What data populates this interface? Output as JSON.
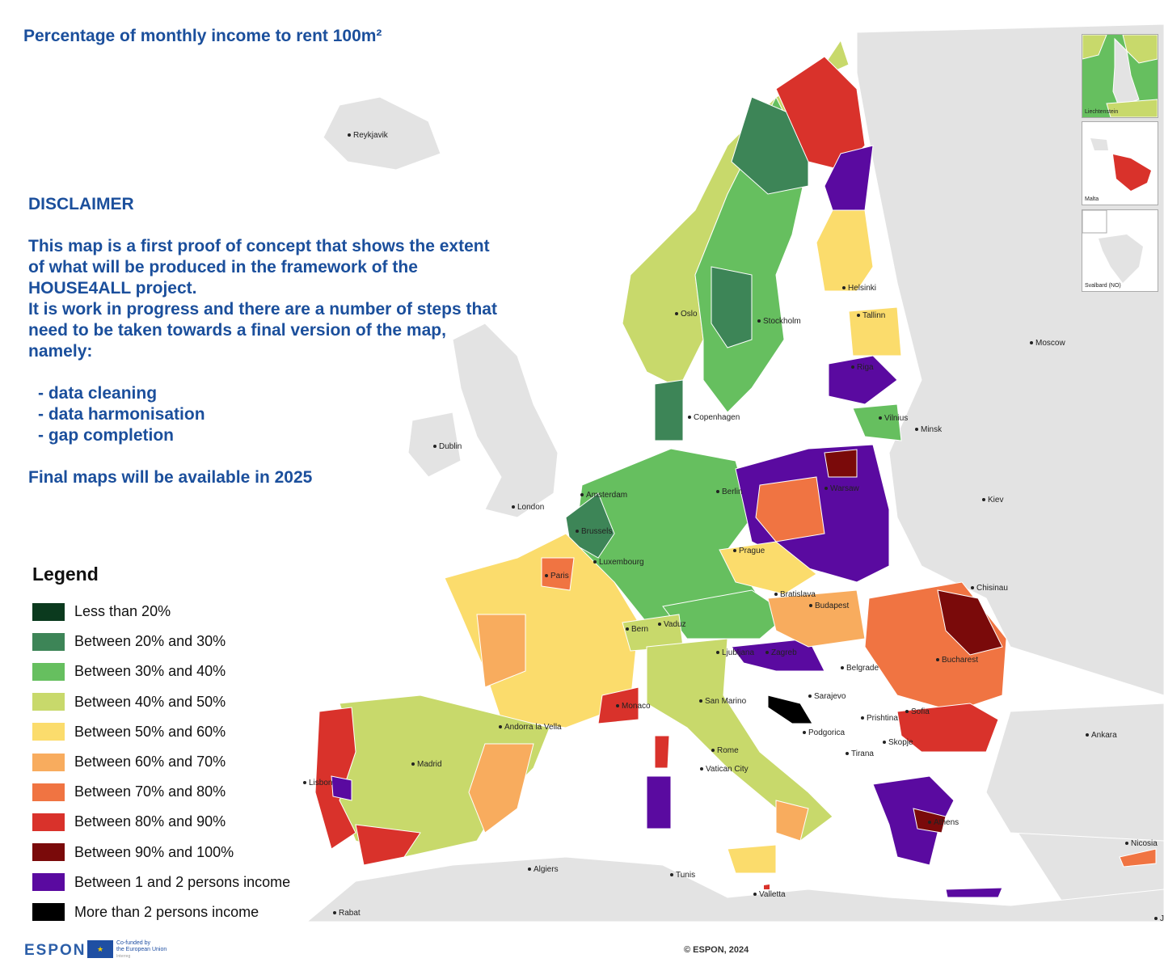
{
  "title": "Percentage of monthly income to rent 100m²",
  "disclaimer": {
    "heading": "DISCLAIMER",
    "lines": [
      "This map is a first proof of concept that shows the extent",
      "of what will be produced in the framework of the",
      "HOUSE4ALL project.",
      "It is work in progress and there are a number of steps that",
      "need to be taken towards a final version of the map,",
      "namely:"
    ],
    "bullets": [
      "- data cleaning",
      "- data harmonisation",
      "- gap completion"
    ],
    "final_note": "Final maps will be available in 2025"
  },
  "legend": {
    "title": "Legend",
    "items": [
      {
        "label": "Less than 20%",
        "color": "#0b3a1e"
      },
      {
        "label": "Between 20% and 30%",
        "color": "#3d8557"
      },
      {
        "label": "Between 30% and 40%",
        "color": "#66bf5f"
      },
      {
        "label": "Between 40% and 50%",
        "color": "#c8d96b"
      },
      {
        "label": "Between 50% and 60%",
        "color": "#fbdc6c"
      },
      {
        "label": "Between 60% and 70%",
        "color": "#f8ac5e"
      },
      {
        "label": "Between 70% and 80%",
        "color": "#f07442"
      },
      {
        "label": "Between 80% and 90%",
        "color": "#d9322b"
      },
      {
        "label": "Between 90% and 100%",
        "color": "#7a0a0a"
      },
      {
        "label": "Between 1 and 2 persons income",
        "color": "#5a0aa0"
      },
      {
        "label": "More than 2 persons income",
        "color": "#000000"
      }
    ]
  },
  "cities": [
    "Reykjavik",
    "Oslo",
    "Stockholm",
    "Helsinki",
    "Tallinn",
    "Riga",
    "Vilnius",
    "Minsk",
    "Moscow",
    "Copenhagen",
    "Dublin",
    "London",
    "Amsterdam",
    "Brussels",
    "Berlin",
    "Warsaw",
    "Luxembourg",
    "Paris",
    "Prague",
    "Kiev",
    "Chisinau",
    "Bratislava",
    "Budapest",
    "Bern",
    "Vaduz",
    "Ljubljana",
    "Zagreb",
    "Belgrade",
    "Bucharest",
    "Sarajevo",
    "San Marino",
    "Monaco",
    "Andorra la Vella",
    "Sofia",
    "Prishtina",
    "Podgorica",
    "Skopje",
    "Tirana",
    "Madrid",
    "Rome",
    "Vatican City",
    "Lisbon",
    "Ankara",
    "Athens",
    "Nicosia",
    "Algiers",
    "Tunis",
    "Valletta",
    "Rabat",
    "Je"
  ],
  "insets": [
    "Liechtenstein",
    "Malta",
    "Svalbard (NO)"
  ],
  "footer": {
    "logo": "ESPON",
    "eu_text": [
      "Co-funded by",
      "the European Union",
      "Interreg"
    ],
    "copyright": "© ESPON, 2024"
  }
}
